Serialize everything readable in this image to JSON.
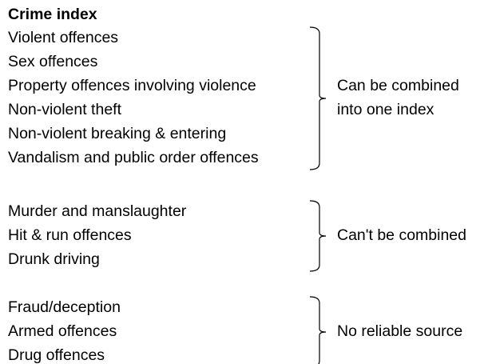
{
  "title": "Crime index",
  "groups": [
    {
      "items": [
        "Violent offences",
        "Sex offences",
        "Property offences involving violence",
        "Non-violent theft",
        "Non-violent breaking & entering",
        "Vandalism and public order offences"
      ],
      "label": [
        "Can be combined",
        "into one index"
      ]
    },
    {
      "items": [
        "Murder and manslaughter",
        "Hit & run offences",
        "Drunk driving"
      ],
      "label": [
        "Can't be combined"
      ]
    },
    {
      "items": [
        "Fraud/deception",
        "Armed offences",
        "Drug offences"
      ],
      "label": [
        "No reliable source"
      ]
    }
  ]
}
